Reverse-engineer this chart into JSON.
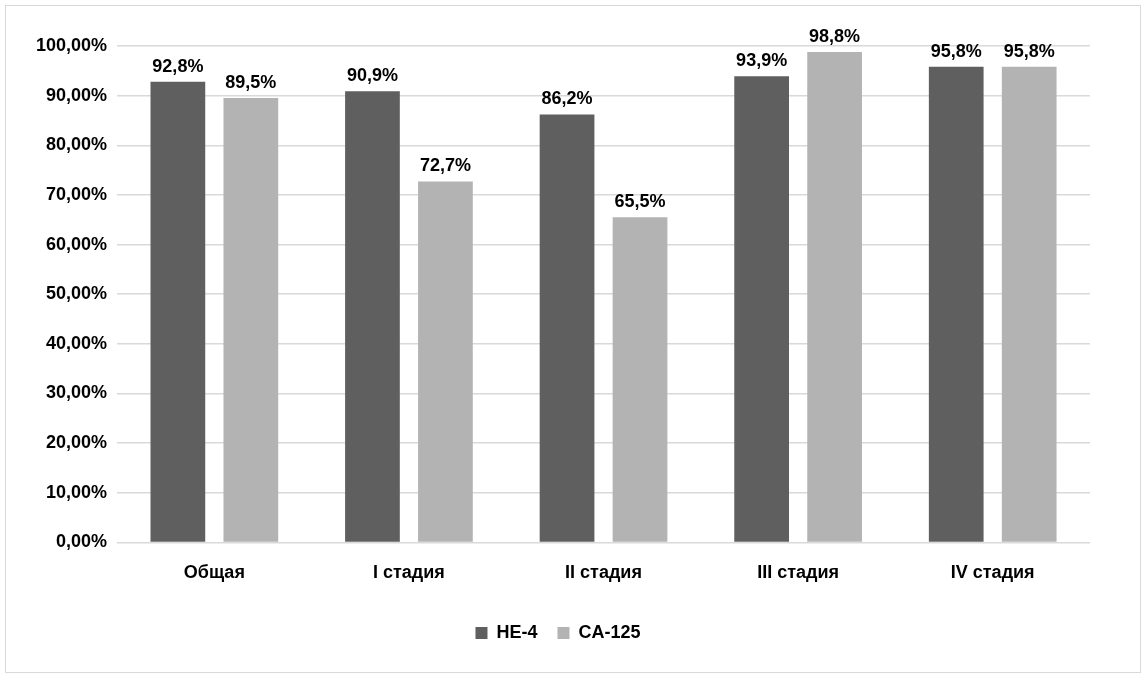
{
  "chart_data": {
    "type": "bar",
    "categories": [
      "Общая",
      "I стадия",
      "II стадия",
      "III стадия",
      "IV стадия"
    ],
    "series": [
      {
        "name": "HE-4",
        "color": "#5f5f5f",
        "values": [
          92.8,
          90.9,
          86.2,
          93.9,
          95.8
        ],
        "value_labels": [
          "92,8%",
          "90,9%",
          "86,2%",
          "93,9%",
          "95,8%"
        ]
      },
      {
        "name": "CA-125",
        "color": "#b3b3b3",
        "values": [
          89.5,
          72.7,
          65.5,
          98.8,
          95.8
        ],
        "value_labels": [
          "89,5%",
          "72,7%",
          "65,5%",
          "98,8%",
          "95,8%"
        ]
      }
    ],
    "ylim": [
      0,
      100
    ],
    "yticks": [
      {
        "value": 0,
        "label": "0,00%"
      },
      {
        "value": 10,
        "label": "10,00%"
      },
      {
        "value": 20,
        "label": "20,00%"
      },
      {
        "value": 30,
        "label": "30,00%"
      },
      {
        "value": 40,
        "label": "40,00%"
      },
      {
        "value": 50,
        "label": "50,00%"
      },
      {
        "value": 60,
        "label": "60,00%"
      },
      {
        "value": 70,
        "label": "70,00%"
      },
      {
        "value": 80,
        "label": "80,00%"
      },
      {
        "value": 90,
        "label": "90,00%"
      },
      {
        "value": 100,
        "label": "100,00%"
      }
    ],
    "grid": "y",
    "legend": "bottom"
  }
}
